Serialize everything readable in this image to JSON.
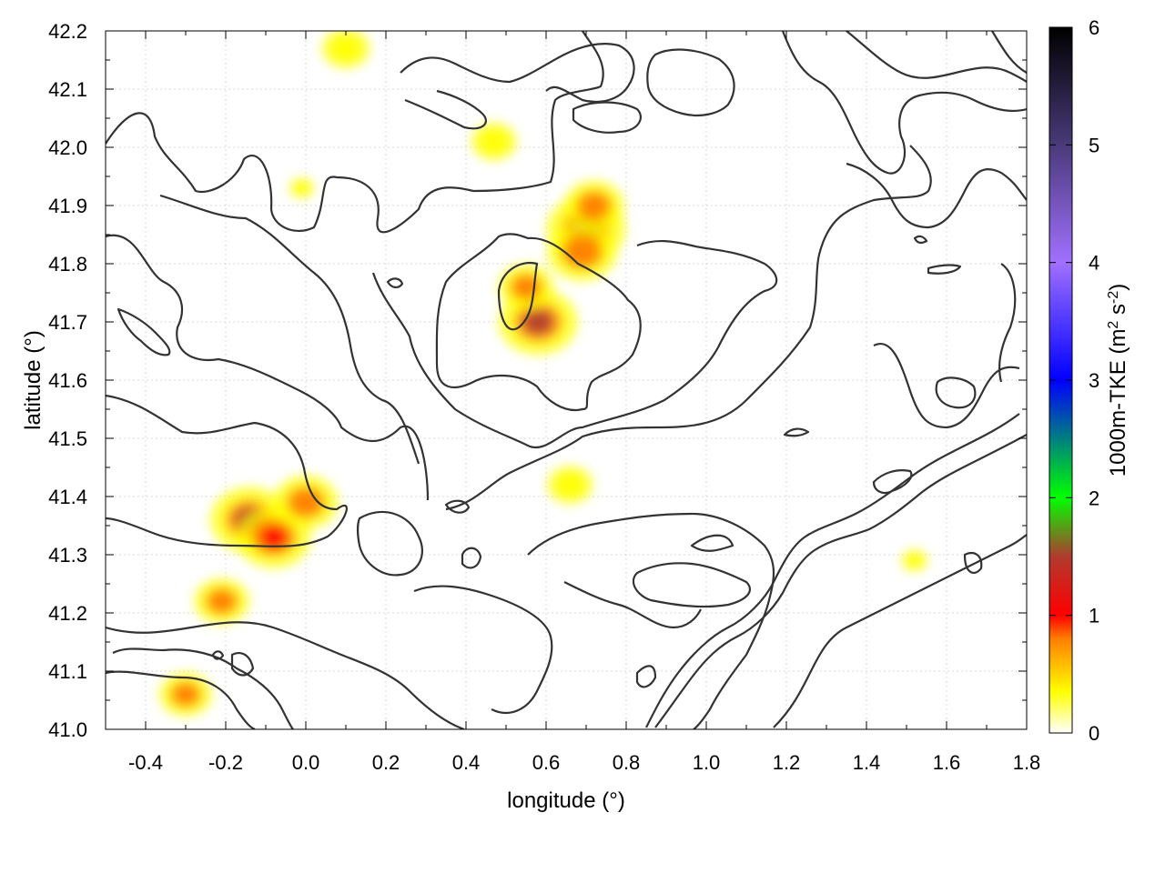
{
  "chart_data": {
    "type": "heatmap",
    "title": "",
    "xlabel": "longitude (°)",
    "ylabel": "latitude (°)",
    "xlim": [
      -0.5,
      1.8
    ],
    "ylim": [
      41.0,
      42.2
    ],
    "xticks": [
      "-0.4",
      "-0.2",
      "0.0",
      "0.2",
      "0.4",
      "0.6",
      "0.8",
      "1.0",
      "1.2",
      "1.4",
      "1.6",
      "1.8"
    ],
    "yticks": [
      "41.0",
      "41.1",
      "41.2",
      "41.3",
      "41.4",
      "41.5",
      "41.6",
      "41.7",
      "41.8",
      "41.9",
      "42.0",
      "42.1",
      "42.2"
    ],
    "grid": true,
    "colorbar": {
      "label_prefix": "1000m-TKE (m",
      "label_mid": " s",
      "label_suffix": ")",
      "sup1": "2",
      "sup2": "-2",
      "range": [
        0,
        6
      ],
      "ticks": [
        "0",
        "1",
        "2",
        "3",
        "4",
        "5",
        "6"
      ],
      "stops": [
        {
          "v": 0.0,
          "c": "#ffffff"
        },
        {
          "v": 0.35,
          "c": "#ffff00"
        },
        {
          "v": 0.8,
          "c": "#ff7f00"
        },
        {
          "v": 1.0,
          "c": "#ff0000"
        },
        {
          "v": 1.5,
          "c": "#b03a2e"
        },
        {
          "v": 2.0,
          "c": "#00ff00"
        },
        {
          "v": 3.0,
          "c": "#0000ff"
        },
        {
          "v": 4.0,
          "c": "#a070ff"
        },
        {
          "v": 5.0,
          "c": "#4a3a7a"
        },
        {
          "v": 6.0,
          "c": "#000000"
        }
      ]
    },
    "hotspots": [
      {
        "lon": 0.58,
        "lat": 41.7,
        "value": 1.2
      },
      {
        "lon": 0.55,
        "lat": 41.76,
        "value": 0.5
      },
      {
        "lon": 0.7,
        "lat": 41.86,
        "value": 1.1
      },
      {
        "lon": 0.72,
        "lat": 41.9,
        "value": 0.6
      },
      {
        "lon": 0.69,
        "lat": 41.82,
        "value": 0.8
      },
      {
        "lon": -0.14,
        "lat": 41.36,
        "value": 1.1
      },
      {
        "lon": -0.08,
        "lat": 41.33,
        "value": 0.9
      },
      {
        "lon": 0.0,
        "lat": 41.39,
        "value": 0.7
      },
      {
        "lon": -0.21,
        "lat": 41.22,
        "value": 0.5
      },
      {
        "lon": -0.3,
        "lat": 41.06,
        "value": 0.45
      },
      {
        "lon": 0.1,
        "lat": 42.17,
        "value": 0.35
      },
      {
        "lon": 0.66,
        "lat": 41.42,
        "value": 0.3
      },
      {
        "lon": 0.47,
        "lat": 42.01,
        "value": 0.3
      },
      {
        "lon": 1.52,
        "lat": 41.29,
        "value": 0.25
      },
      {
        "lon": -0.01,
        "lat": 41.93,
        "value": 0.2
      }
    ],
    "contour_levels_shown": "orography isolines (unlabeled)"
  }
}
